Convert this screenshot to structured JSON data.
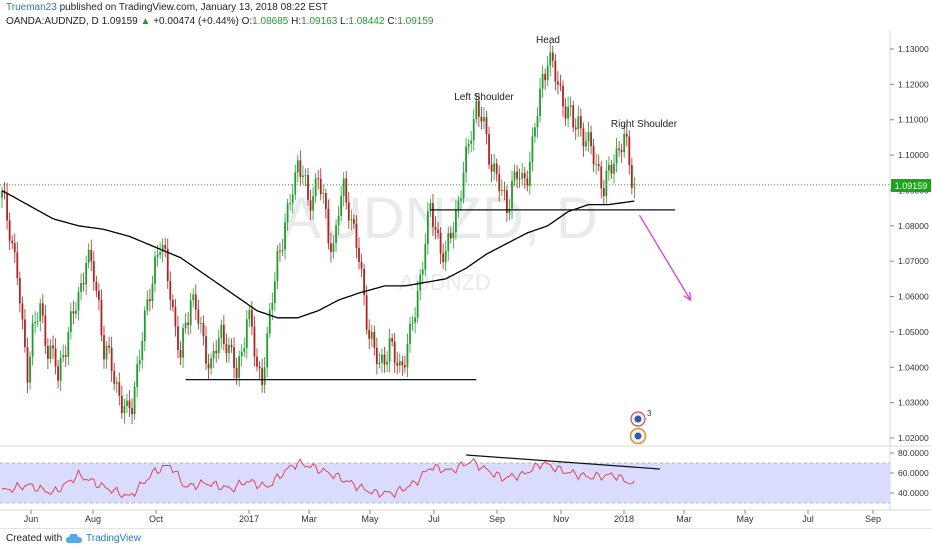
{
  "header": {
    "author": "Trueman23",
    "published": "published on TradingView.com, January 13, 2018 08:22 EST",
    "symbol": "OANDA:AUDNZD, D",
    "last": "1.09159",
    "change": "+0.00474 (+0.44%)",
    "o_label": "O:",
    "o_value": "1.08685",
    "h_label": "H:",
    "h_value": "1.09163",
    "l_label": "L:",
    "l_value": "1.08442",
    "c_label": "C:",
    "c_value": "1.09159"
  },
  "watermark": {
    "big": "AUDNZD, D",
    "small": "AUDNZD"
  },
  "annotations": {
    "head": "Head",
    "left_shoulder": "Left Shoulder",
    "right_shoulder": "Right Shoulder"
  },
  "price_label": "1.09159",
  "footer": {
    "created": "Created with",
    "brand": "TradingView"
  },
  "colors": {
    "up": "#1f9e2e",
    "down": "#b22222",
    "ma": "#000000",
    "rsi": "#e2383f",
    "rsi_band": "#d9dcff",
    "arrow": "#e23be0",
    "last_price": "#1aa51a"
  },
  "chart_data": {
    "type": "candlestick",
    "price_axis": {
      "ticks": [
        "1.13000",
        "1.12000",
        "1.11000",
        "1.10000",
        "1.09000",
        "1.08000",
        "1.07000",
        "1.06000",
        "1.05000",
        "1.04000",
        "1.03000",
        "1.02000"
      ],
      "range": [
        1.018,
        1.134
      ]
    },
    "rsi_axis": {
      "ticks": [
        "80.0000",
        "60.0000",
        "40.0000"
      ],
      "range": [
        25,
        85
      ],
      "band": [
        30,
        70
      ]
    },
    "time_axis": [
      "Jun",
      "Aug",
      "Oct",
      "2017",
      "Mar",
      "May",
      "Jul",
      "Sep",
      "Nov",
      "2018",
      "Mar",
      "May",
      "Jul",
      "Sep"
    ],
    "close_path": [
      [
        0,
        1.088
      ],
      [
        3,
        1.08
      ],
      [
        6,
        1.066
      ],
      [
        8,
        1.05
      ],
      [
        10,
        1.04
      ],
      [
        12,
        1.05
      ],
      [
        15,
        1.056
      ],
      [
        18,
        1.046
      ],
      [
        21,
        1.041
      ],
      [
        22,
        1.036
      ],
      [
        24,
        1.045
      ],
      [
        27,
        1.052
      ],
      [
        30,
        1.06
      ],
      [
        33,
        1.071
      ],
      [
        36,
        1.066
      ],
      [
        38,
        1.058
      ],
      [
        40,
        1.045
      ],
      [
        43,
        1.04
      ],
      [
        45,
        1.035
      ],
      [
        47,
        1.03
      ],
      [
        49,
        1.026
      ],
      [
        51,
        1.03
      ],
      [
        53,
        1.04
      ],
      [
        56,
        1.052
      ],
      [
        58,
        1.062
      ],
      [
        60,
        1.07
      ],
      [
        62,
        1.074
      ],
      [
        64,
        1.07
      ],
      [
        66,
        1.063
      ],
      [
        68,
        1.05
      ],
      [
        70,
        1.042
      ],
      [
        72,
        1.053
      ],
      [
        74,
        1.06
      ],
      [
        76,
        1.056
      ],
      [
        78,
        1.05
      ],
      [
        80,
        1.045
      ],
      [
        82,
        1.04
      ],
      [
        84,
        1.045
      ],
      [
        86,
        1.05
      ],
      [
        88,
        1.048
      ],
      [
        90,
        1.042
      ],
      [
        92,
        1.038
      ],
      [
        94,
        1.045
      ],
      [
        96,
        1.054
      ],
      [
        98,
        1.05
      ],
      [
        100,
        1.04
      ],
      [
        102,
        1.038
      ],
      [
        104,
        1.046
      ],
      [
        106,
        1.06
      ],
      [
        108,
        1.072
      ],
      [
        110,
        1.076
      ],
      [
        112,
        1.082
      ],
      [
        114,
        1.092
      ],
      [
        116,
        1.098
      ],
      [
        118,
        1.094
      ],
      [
        120,
        1.086
      ],
      [
        122,
        1.09
      ],
      [
        124,
        1.094
      ],
      [
        126,
        1.086
      ],
      [
        128,
        1.078
      ],
      [
        130,
        1.074
      ],
      [
        132,
        1.084
      ],
      [
        134,
        1.09
      ],
      [
        136,
        1.086
      ],
      [
        138,
        1.078
      ],
      [
        140,
        1.07
      ],
      [
        142,
        1.06
      ],
      [
        144,
        1.05
      ],
      [
        146,
        1.044
      ],
      [
        148,
        1.04
      ],
      [
        150,
        1.044
      ],
      [
        152,
        1.046
      ],
      [
        154,
        1.042
      ],
      [
        156,
        1.04
      ],
      [
        158,
        1.044
      ],
      [
        160,
        1.048
      ],
      [
        162,
        1.056
      ],
      [
        164,
        1.066
      ],
      [
        166,
        1.076
      ],
      [
        168,
        1.084
      ],
      [
        170,
        1.08
      ],
      [
        172,
        1.074
      ],
      [
        174,
        1.07
      ],
      [
        176,
        1.078
      ],
      [
        178,
        1.084
      ],
      [
        180,
        1.09
      ],
      [
        182,
        1.098
      ],
      [
        184,
        1.108
      ],
      [
        186,
        1.114
      ],
      [
        188,
        1.11
      ],
      [
        190,
        1.104
      ],
      [
        192,
        1.098
      ],
      [
        194,
        1.094
      ],
      [
        196,
        1.088
      ],
      [
        198,
        1.086
      ],
      [
        200,
        1.092
      ],
      [
        202,
        1.094
      ],
      [
        204,
        1.092
      ],
      [
        206,
        1.096
      ],
      [
        208,
        1.102
      ],
      [
        210,
        1.112
      ],
      [
        212,
        1.122
      ],
      [
        214,
        1.128
      ],
      [
        216,
        1.124
      ],
      [
        218,
        1.12
      ],
      [
        220,
        1.116
      ],
      [
        222,
        1.112
      ],
      [
        224,
        1.108
      ],
      [
        226,
        1.11
      ],
      [
        228,
        1.106
      ],
      [
        230,
        1.102
      ],
      [
        232,
        1.1
      ],
      [
        234,
        1.096
      ],
      [
        236,
        1.09
      ],
      [
        238,
        1.094
      ],
      [
        240,
        1.1
      ],
      [
        242,
        1.102
      ],
      [
        244,
        1.104
      ],
      [
        246,
        1.098
      ],
      [
        248,
        1.091
      ]
    ],
    "ma_200": [
      [
        0,
        1.09
      ],
      [
        10,
        1.086
      ],
      [
        20,
        1.082
      ],
      [
        30,
        1.08
      ],
      [
        40,
        1.079
      ],
      [
        50,
        1.077
      ],
      [
        60,
        1.074
      ],
      [
        70,
        1.071
      ],
      [
        80,
        1.066
      ],
      [
        90,
        1.061
      ],
      [
        100,
        1.056
      ],
      [
        108,
        1.054
      ],
      [
        116,
        1.054
      ],
      [
        124,
        1.056
      ],
      [
        132,
        1.059
      ],
      [
        140,
        1.061
      ],
      [
        150,
        1.063
      ],
      [
        158,
        1.063
      ],
      [
        166,
        1.064
      ],
      [
        174,
        1.065
      ],
      [
        182,
        1.068
      ],
      [
        190,
        1.072
      ],
      [
        198,
        1.075
      ],
      [
        206,
        1.078
      ],
      [
        214,
        1.08
      ],
      [
        222,
        1.084
      ],
      [
        230,
        1.086
      ],
      [
        238,
        1.086
      ],
      [
        248,
        1.087
      ]
    ],
    "rsi": [
      [
        0,
        42
      ],
      [
        10,
        48
      ],
      [
        20,
        40
      ],
      [
        30,
        58
      ],
      [
        40,
        46
      ],
      [
        50,
        36
      ],
      [
        60,
        62
      ],
      [
        66,
        68
      ],
      [
        72,
        46
      ],
      [
        80,
        50
      ],
      [
        90,
        44
      ],
      [
        96,
        52
      ],
      [
        104,
        46
      ],
      [
        112,
        64
      ],
      [
        116,
        70
      ],
      [
        122,
        66
      ],
      [
        130,
        58
      ],
      [
        140,
        46
      ],
      [
        146,
        40
      ],
      [
        154,
        40
      ],
      [
        162,
        50
      ],
      [
        168,
        66
      ],
      [
        176,
        62
      ],
      [
        184,
        72
      ],
      [
        188,
        66
      ],
      [
        196,
        55
      ],
      [
        204,
        58
      ],
      [
        212,
        70
      ],
      [
        220,
        62
      ],
      [
        230,
        56
      ],
      [
        240,
        58
      ],
      [
        248,
        48
      ]
    ],
    "trendlines": [
      {
        "name": "left-neckline",
        "from": [
          72,
          1.0365
        ],
        "to": [
          186,
          1.0365
        ]
      },
      {
        "name": "right-neckline",
        "from": [
          168,
          1.0845
        ],
        "to": [
          264,
          1.0845
        ]
      },
      {
        "name": "rsi-divergence",
        "rsi_from": [
          182,
          78
        ],
        "rsi_to": [
          258,
          64
        ]
      }
    ],
    "projection_arrow": {
      "from": [
        250,
        1.083
      ],
      "to": [
        270,
        1.059
      ]
    },
    "last_price": 1.09159
  }
}
